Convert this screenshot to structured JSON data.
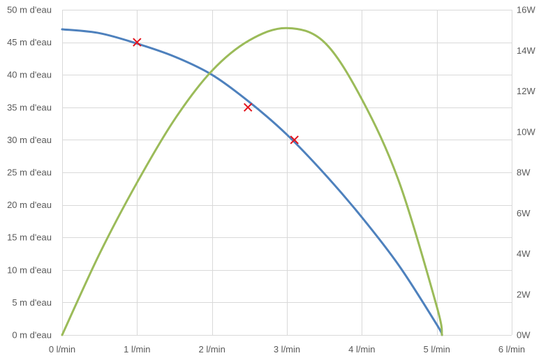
{
  "chart_data": {
    "type": "line",
    "title": "",
    "xlabel": "",
    "ylabel": "",
    "xlim": [
      0,
      6
    ],
    "ylim": [
      0,
      50
    ],
    "y2lim": [
      0,
      16
    ],
    "x_ticks": [
      {
        "value": 0,
        "label": "0 l/min"
      },
      {
        "value": 1,
        "label": "1 l/min"
      },
      {
        "value": 2,
        "label": "2 l/min"
      },
      {
        "value": 3,
        "label": "3 l/min"
      },
      {
        "value": 4,
        "label": "4 l/min"
      },
      {
        "value": 5,
        "label": "5 l/min"
      },
      {
        "value": 6,
        "label": "6 l/min"
      }
    ],
    "y_ticks": [
      {
        "value": 0,
        "label": "0 m d'eau"
      },
      {
        "value": 5,
        "label": "5 m d'eau"
      },
      {
        "value": 10,
        "label": "10 m d'eau"
      },
      {
        "value": 15,
        "label": "15 m d'eau"
      },
      {
        "value": 20,
        "label": "20 m d'eau"
      },
      {
        "value": 25,
        "label": "25 m d'eau"
      },
      {
        "value": 30,
        "label": "30 m d'eau"
      },
      {
        "value": 35,
        "label": "35 m d'eau"
      },
      {
        "value": 40,
        "label": "40 m d'eau"
      },
      {
        "value": 45,
        "label": "45 m d'eau"
      },
      {
        "value": 50,
        "label": "50 m d'eau"
      }
    ],
    "y2_ticks": [
      {
        "value": 0,
        "label": "0W"
      },
      {
        "value": 2,
        "label": "2W"
      },
      {
        "value": 4,
        "label": "4W"
      },
      {
        "value": 6,
        "label": "6W"
      },
      {
        "value": 8,
        "label": "8W"
      },
      {
        "value": 10,
        "label": "10W"
      },
      {
        "value": 12,
        "label": "12W"
      },
      {
        "value": 14,
        "label": "14W"
      },
      {
        "value": 16,
        "label": "16W"
      }
    ],
    "grid": true,
    "series": [
      {
        "axis": "left",
        "color": "#4e81bd",
        "x": [
          0,
          0.5,
          1,
          1.5,
          2,
          2.5,
          3,
          3.5,
          4,
          4.5,
          5,
          5.07
        ],
        "y": [
          47,
          46.4,
          44.8,
          42.8,
          40,
          35.8,
          30.8,
          24.8,
          18.1,
          10.6,
          1.6,
          0
        ]
      },
      {
        "axis": "right",
        "color": "#9bbb59",
        "x": [
          0,
          0.5,
          1,
          1.5,
          2,
          2.5,
          3,
          3.5,
          4,
          4.5,
          5,
          5.07
        ],
        "y": [
          0,
          4.0,
          7.5,
          10.6,
          13.0,
          14.5,
          15.1,
          14.4,
          11.6,
          7.5,
          1.4,
          0
        ]
      }
    ],
    "markers": {
      "color": "#e3121b",
      "symbol": "x",
      "points": [
        {
          "x": 1,
          "y": 45
        },
        {
          "x": 2.48,
          "y": 35
        },
        {
          "x": 3.1,
          "y": 30
        }
      ]
    }
  }
}
